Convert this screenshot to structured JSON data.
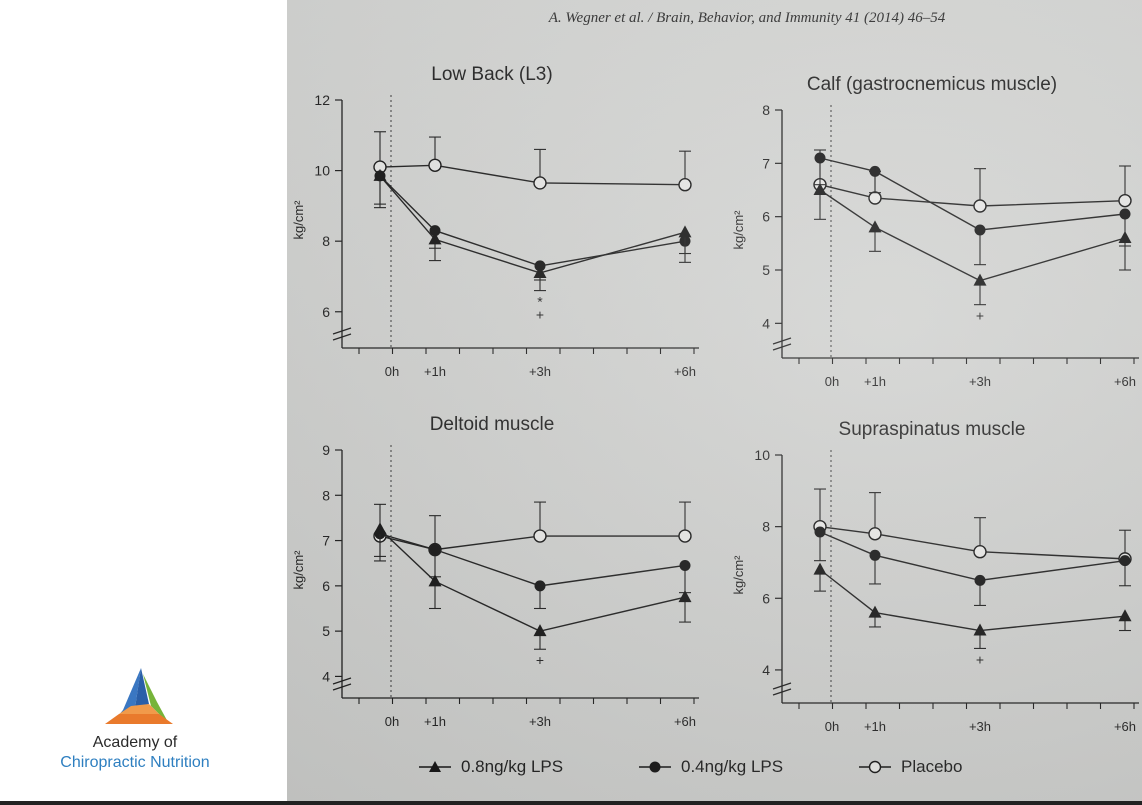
{
  "page": {
    "header": "A. Wegner et al. / Brain, Behavior, and Immunity 41 (2014) 46–54",
    "logo": {
      "line1": "Academy of",
      "line2": "Chiropractic Nutrition"
    }
  },
  "legend": [
    {
      "label": "0.8ng/kg LPS",
      "marker": "triangle-filled"
    },
    {
      "label": "0.4ng/kg LPS",
      "marker": "circle-filled"
    },
    {
      "label": "Placebo",
      "marker": "circle-open"
    }
  ],
  "chart_data": [
    {
      "type": "line",
      "title": "Low Back (L3)",
      "ylabel": "kg/cm²",
      "ylim": [
        5.2,
        12
      ],
      "yticks": [
        6,
        8,
        10,
        12
      ],
      "x_labels": [
        "0h",
        "+1h",
        "+3h",
        "+6h"
      ],
      "series": [
        {
          "name": "0.8ng/kg LPS",
          "marker": "triangle",
          "values": [
            9.85,
            8.05,
            7.1,
            8.25
          ],
          "err": [
            0.9,
            0.6,
            0.5,
            0.6
          ]
        },
        {
          "name": "0.4ng/kg LPS",
          "marker": "circle",
          "values": [
            9.85,
            8.3,
            7.3,
            8.0
          ],
          "err": [
            0.8,
            0.5,
            0.4,
            0.6
          ]
        },
        {
          "name": "Placebo",
          "marker": "open",
          "values": [
            10.1,
            10.15,
            9.65,
            9.6
          ],
          "err": [
            1.0,
            0.8,
            0.95,
            0.95
          ]
        }
      ],
      "annotations": [
        {
          "x": "+3h",
          "text": "*"
        },
        {
          "x": "+3h",
          "text": "+"
        }
      ]
    },
    {
      "type": "line",
      "title": "Calf (gastrocnemicus muscle)",
      "ylabel": "kg/cm²",
      "ylim": [
        3.5,
        8
      ],
      "yticks": [
        4,
        5,
        6,
        7,
        8
      ],
      "x_labels": [
        "0h",
        "+1h",
        "+3h",
        "+6h"
      ],
      "series": [
        {
          "name": "0.8ng/kg LPS",
          "marker": "triangle",
          "values": [
            6.5,
            5.8,
            4.8,
            5.6
          ],
          "err": [
            0.55,
            0.45,
            0.45,
            0.6
          ]
        },
        {
          "name": "0.4ng/kg LPS",
          "marker": "circle",
          "values": [
            7.1,
            6.85,
            5.75,
            6.05
          ],
          "err": [
            0.5,
            0.4,
            0.65,
            0.6
          ]
        },
        {
          "name": "Placebo",
          "marker": "open",
          "values": [
            6.6,
            6.35,
            6.2,
            6.3
          ],
          "err": [
            0.65,
            0.5,
            0.7,
            0.65
          ]
        }
      ],
      "annotations": [
        {
          "x": "+3h",
          "text": "+"
        }
      ]
    },
    {
      "type": "line",
      "title": "Deltoid muscle",
      "ylabel": "kg/cm²",
      "ylim": [
        3.7,
        9
      ],
      "yticks": [
        4,
        5,
        6,
        7,
        8,
        9
      ],
      "x_labels": [
        "0h",
        "+1h",
        "+3h",
        "+6h"
      ],
      "series": [
        {
          "name": "0.8ng/kg LPS",
          "marker": "triangle",
          "values": [
            7.25,
            6.1,
            5.0,
            5.75
          ],
          "err": [
            0.6,
            0.6,
            0.4,
            0.55
          ]
        },
        {
          "name": "0.4ng/kg LPS",
          "marker": "circle",
          "values": [
            7.15,
            6.8,
            6.0,
            6.45
          ],
          "err": [
            0.6,
            0.6,
            0.5,
            0.6
          ]
        },
        {
          "name": "Placebo",
          "marker": "open",
          "values": [
            7.1,
            6.8,
            7.1,
            7.1
          ],
          "err": [
            0.7,
            0.75,
            0.75,
            0.75
          ]
        }
      ],
      "annotations": [
        {
          "x": "+3h",
          "text": "+"
        }
      ]
    },
    {
      "type": "line",
      "title": "Supraspinatus muscle",
      "ylabel": "kg/cm²",
      "ylim": [
        3.3,
        10
      ],
      "yticks": [
        4,
        6,
        8,
        10
      ],
      "x_labels": [
        "0h",
        "+1h",
        "+3h",
        "+6h"
      ],
      "series": [
        {
          "name": "0.8ng/kg LPS",
          "marker": "triangle",
          "values": [
            6.8,
            5.6,
            5.1,
            5.5
          ],
          "err": [
            0.6,
            0.4,
            0.5,
            0.4
          ]
        },
        {
          "name": "0.4ng/kg LPS",
          "marker": "circle",
          "values": [
            7.85,
            7.2,
            6.5,
            7.05
          ],
          "err": [
            0.8,
            0.8,
            0.7,
            0.7
          ]
        },
        {
          "name": "Placebo",
          "marker": "open",
          "values": [
            8.0,
            7.8,
            7.3,
            7.1
          ],
          "err": [
            1.05,
            1.15,
            0.95,
            0.8
          ]
        }
      ],
      "annotations": [
        {
          "x": "+3h",
          "text": "+"
        }
      ]
    }
  ]
}
